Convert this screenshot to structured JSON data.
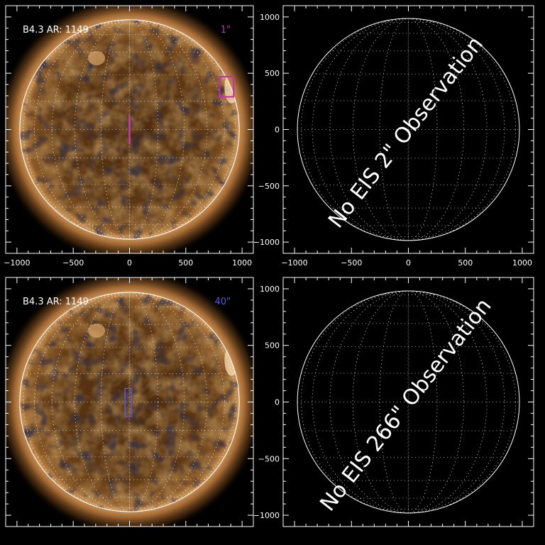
{
  "colors": {
    "background": "#000000",
    "frame": "#ffffff",
    "sun_base": "#5a3512",
    "corona": "#e6b27a",
    "fov_1arcsec": "#c22fb8",
    "fov_40arcsec": "#5d5ad8"
  },
  "axis_ticks": {
    "x": [
      "−1000",
      "−500",
      "0",
      "500",
      "1000"
    ],
    "y": [
      "1000",
      "500",
      "0",
      "−500",
      "−1000"
    ]
  },
  "panels": [
    {
      "kind": "image",
      "label": "B4.3 AR: 1149",
      "slit": "1\"",
      "slit_color": "#c22fb8",
      "has_x_ticks": true,
      "has_y_ticks": false
    },
    {
      "kind": "empty",
      "message": "No EIS 2\" Observation",
      "has_x_ticks": true,
      "has_y_ticks": true
    },
    {
      "kind": "image",
      "label": "B4.3 AR: 1149",
      "slit": "40\"",
      "slit_color": "#5d5ad8",
      "has_x_ticks": false,
      "has_y_ticks": false
    },
    {
      "kind": "empty",
      "message": "No EIS 266\" Observation",
      "has_x_ticks": false,
      "has_y_ticks": true
    }
  ]
}
